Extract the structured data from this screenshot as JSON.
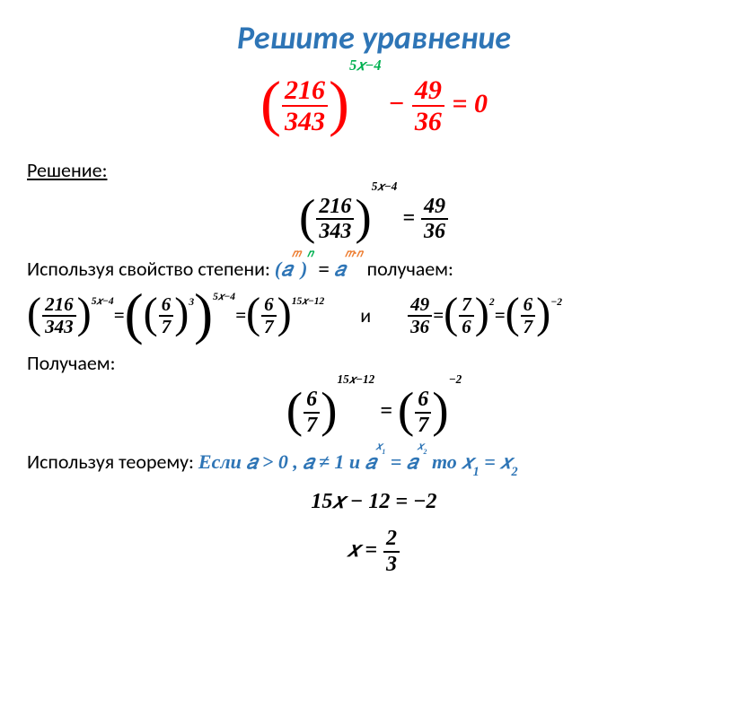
{
  "title": "Решите  уравнение",
  "main_eq": {
    "base_num": "216",
    "base_den": "343",
    "exp": "5𝑥−4",
    "minus": " − ",
    "frac2_num": "49",
    "frac2_den": "36",
    "eq_zero": " = 0"
  },
  "solution_label": "Решение:",
  "step1": {
    "base_num": "216",
    "base_den": "343",
    "exp": "5𝑥−4",
    "eq": " = ",
    "r_num": "49",
    "r_den": "36"
  },
  "prop_text1": "Используя свойство степени:  ",
  "prop_formula": {
    "open": "(",
    "a": "𝑎",
    "m": "𝑚",
    "close": ")",
    "n": "𝑛",
    "eq": " = ",
    "a2": "𝑎",
    "mn": "𝑚·𝑛"
  },
  "prop_text2": "    получаем:",
  "step2": {
    "l1_num": "216",
    "l1_den": "343",
    "l1_exp": "5𝑥−4",
    "eq1": " = ",
    "l2_inner_num": "6",
    "l2_inner_den": "7",
    "l2_inner_exp": "3",
    "l2_outer_exp": "5𝑥−4",
    "eq2": " = ",
    "l3_num": "6",
    "l3_den": "7",
    "l3_exp": "15𝑥−12",
    "and": "и",
    "r1_num": "49",
    "r1_den": "36",
    "eq3": " = ",
    "r2_num": "7",
    "r2_den": "6",
    "r2_exp": "2",
    "eq4": " = ",
    "r3_num": "6",
    "r3_den": "7",
    "r3_exp": "−2"
  },
  "get_text": "Получаем:",
  "step3": {
    "l_num": "6",
    "l_den": "7",
    "l_exp": "15𝑥−12",
    "eq": " = ",
    "r_num": "6",
    "r_den": "7",
    "r_exp": "−2"
  },
  "theorem_text": "Используя теорему:   ",
  "theorem": {
    "if": "Если  ",
    "c1": "𝑎 > 0",
    "comma": " , ",
    "c2": "𝑎 ≠ 1",
    "and": " и  ",
    "c3a": "𝑎",
    "c3x1": "𝑥",
    "c3s1": "1",
    "eq": " = ",
    "c3b": "𝑎",
    "c3x2": "𝑥",
    "c3s2": "2",
    "then": "   то    ",
    "r_x1": "𝑥",
    "r_s1": "1",
    "r_eq": " = ",
    "r_x2": "𝑥",
    "r_s2": "2"
  },
  "step4": "15𝑥 − 12 = −2",
  "step5": {
    "x": "𝑥 = ",
    "num": "2",
    "den": "3"
  }
}
